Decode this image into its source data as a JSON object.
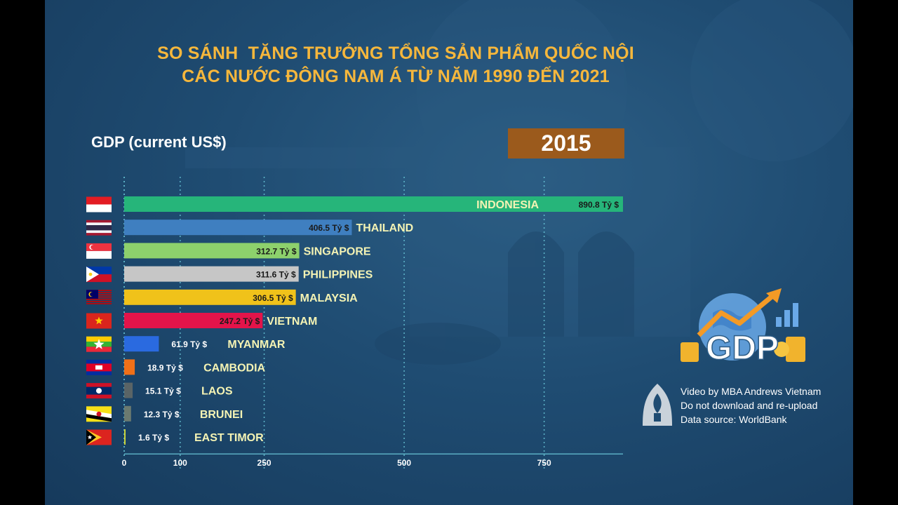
{
  "title": {
    "line1": "SO SÁNH  TĂNG TRƯỞNG TỔNG SẢN PHẨM QUỐC NỘI",
    "line2": "CÁC NƯỚC ĐÔNG NAM Á TỪ NĂM 1990 ĐẾN 2021"
  },
  "metric_label": "GDP (current US$)",
  "year": "2015",
  "unit_suffix": "Tỷ $",
  "logo_text": "GDP",
  "credits": {
    "line1": "Video by MBA Andrews Vietnam",
    "line2": "Do not download and re-upload",
    "line3": "Data source: WorldBank"
  },
  "colors": {
    "title": "#f6b73c",
    "year_box": "#9b5a1c",
    "gridline": "#6fd0e0",
    "country_label": "#f4f3b4"
  },
  "chart_data": {
    "type": "bar",
    "orientation": "horizontal",
    "title": "GDP (current US$)",
    "year": "2015",
    "unit": "Tỷ $",
    "xlim": [
      0,
      890.8
    ],
    "xticks": [
      0,
      100,
      250,
      500,
      750
    ],
    "grid": true,
    "categories": [
      "INDONESIA",
      "THAILAND",
      "SINGAPORE",
      "PHILIPPINES",
      "MALAYSIA",
      "VIETNAM",
      "MYANMAR",
      "CAMBODIA",
      "LAOS",
      "BRUNEI",
      "EAST TIMOR"
    ],
    "values": [
      890.8,
      406.5,
      312.7,
      311.6,
      306.5,
      247.2,
      61.9,
      18.9,
      15.1,
      12.3,
      1.6
    ],
    "value_labels": [
      "890.8",
      "406.5",
      "312.7",
      "311.6",
      "306.5",
      "247.2",
      "61.9",
      "18.9",
      "15.1",
      "12.3",
      "1.6"
    ],
    "bar_colors": [
      "#26b57a",
      "#3f7fc0",
      "#8dd16c",
      "#c6c6c6",
      "#f0c21a",
      "#e3144a",
      "#2a6ae0",
      "#f07018",
      "#5a6466",
      "#6b7a70",
      "#c9d23a"
    ],
    "flags": [
      "indonesia",
      "thailand",
      "singapore",
      "philippines",
      "malaysia",
      "vietnam",
      "myanmar",
      "cambodia",
      "laos",
      "brunei",
      "east-timor"
    ]
  }
}
